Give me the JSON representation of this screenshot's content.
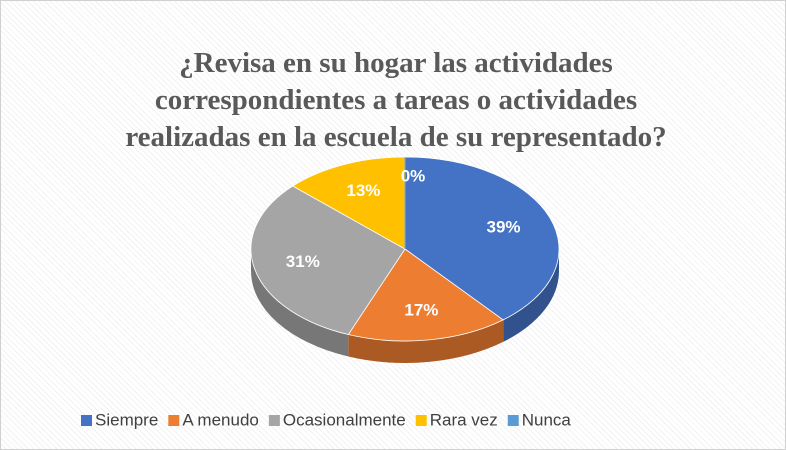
{
  "chart_data": {
    "type": "pie",
    "title": "¿Revisa en su hogar las actividades correspondientes a tareas o actividades realizadas en la escuela de su representado?",
    "categories": [
      "Siempre",
      "A menudo",
      "Ocasionalmente",
      "Rara vez",
      "Nunca"
    ],
    "values": [
      39,
      17,
      31,
      13,
      0
    ],
    "value_labels": [
      "39%",
      "17%",
      "31%",
      "13%",
      "0%"
    ],
    "colors": [
      "#4472c4",
      "#ed7d31",
      "#a5a5a5",
      "#ffc000",
      "#5b9bd5"
    ],
    "legend": "bottom"
  }
}
